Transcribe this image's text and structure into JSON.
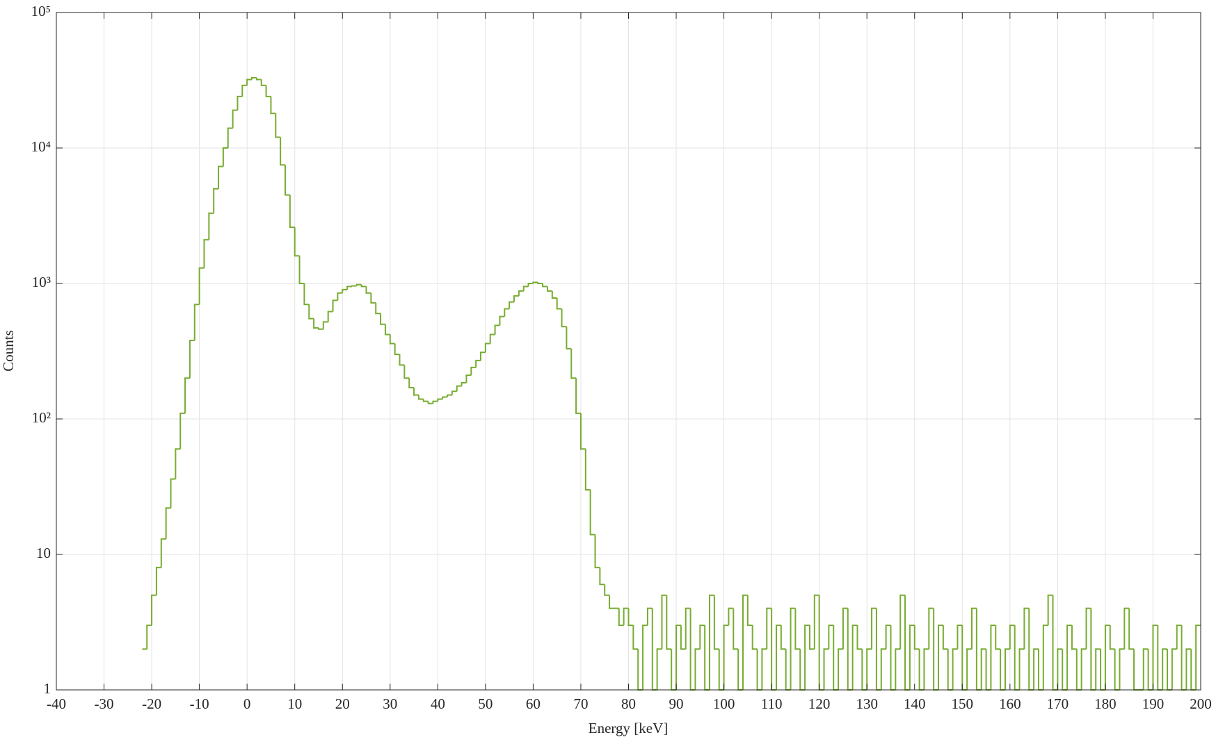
{
  "chart_data": {
    "type": "histogram",
    "xlabel": "Energy [keV]",
    "ylabel": "Counts",
    "color": "#77ac30",
    "log_y": true,
    "grid": true,
    "xlim": [
      -40,
      200
    ],
    "ylim": [
      1,
      100000
    ],
    "xticks": [
      -40,
      -30,
      -20,
      -10,
      0,
      10,
      20,
      30,
      40,
      50,
      60,
      70,
      80,
      90,
      100,
      110,
      120,
      130,
      140,
      150,
      160,
      170,
      180,
      190,
      200
    ],
    "yticks": [
      1,
      10,
      {
        "value": 100,
        "label": "10²"
      },
      {
        "value": 1000,
        "label": "10³"
      },
      {
        "value": 10000,
        "label": "10⁴"
      },
      {
        "value": 100000,
        "label": "10⁵"
      }
    ],
    "bins": [
      -22,
      -21,
      -20,
      -19,
      -18,
      -17,
      -16,
      -15,
      -14,
      -13,
      -12,
      -11,
      -10,
      -9,
      -8,
      -7,
      -6,
      -5,
      -4,
      -3,
      -2,
      -1,
      0,
      1,
      2,
      3,
      4,
      5,
      6,
      7,
      8,
      9,
      10,
      11,
      12,
      13,
      14,
      15,
      16,
      17,
      18,
      19,
      20,
      21,
      22,
      23,
      24,
      25,
      26,
      27,
      28,
      29,
      30,
      31,
      32,
      33,
      34,
      35,
      36,
      37,
      38,
      39,
      40,
      41,
      42,
      43,
      44,
      45,
      46,
      47,
      48,
      49,
      50,
      51,
      52,
      53,
      54,
      55,
      56,
      57,
      58,
      59,
      60,
      61,
      62,
      63,
      64,
      65,
      66,
      67,
      68,
      69,
      70,
      71,
      72,
      73,
      74,
      75,
      76,
      77,
      78,
      79,
      80,
      81,
      82,
      83,
      84,
      85,
      86,
      87,
      88,
      89,
      90,
      91,
      92,
      93,
      94,
      95,
      96,
      97,
      98,
      99,
      100,
      101,
      102,
      103,
      104,
      105,
      106,
      107,
      108,
      109,
      110,
      111,
      112,
      113,
      114,
      115,
      116,
      117,
      118,
      119,
      120,
      121,
      122,
      123,
      124,
      125,
      126,
      127,
      128,
      129,
      130,
      131,
      132,
      133,
      134,
      135,
      136,
      137,
      138,
      139,
      140,
      141,
      142,
      143,
      144,
      145,
      146,
      147,
      148,
      149,
      150,
      151,
      152,
      153,
      154,
      155,
      156,
      157,
      158,
      159,
      160,
      161,
      162,
      163,
      164,
      165,
      166,
      167,
      168,
      169,
      170,
      171,
      172,
      173,
      174,
      175,
      176,
      177,
      178,
      179,
      180,
      181,
      182,
      183,
      184,
      185,
      186,
      187,
      188,
      189,
      190,
      191,
      192,
      193,
      194,
      195,
      196,
      197,
      198,
      199,
      200
    ],
    "values": [
      2,
      3,
      5,
      8,
      13,
      22,
      36,
      60,
      110,
      200,
      380,
      700,
      1300,
      2100,
      3300,
      5000,
      7300,
      10000,
      14000,
      19000,
      24000,
      29000,
      32000,
      33000,
      32000,
      29000,
      24000,
      18000,
      12000,
      7500,
      4500,
      2600,
      1600,
      1000,
      700,
      550,
      470,
      460,
      520,
      620,
      750,
      850,
      900,
      950,
      960,
      980,
      950,
      850,
      720,
      600,
      500,
      420,
      360,
      300,
      250,
      200,
      170,
      150,
      140,
      135,
      130,
      135,
      140,
      145,
      150,
      160,
      175,
      185,
      210,
      240,
      270,
      310,
      360,
      420,
      490,
      570,
      650,
      730,
      810,
      880,
      950,
      1000,
      1020,
      1000,
      950,
      880,
      780,
      650,
      480,
      330,
      200,
      110,
      60,
      30,
      14,
      8,
      6,
      5,
      4,
      4,
      3,
      4,
      3,
      2,
      1,
      3,
      4,
      1,
      2,
      5,
      2,
      1,
      3,
      2,
      4,
      1,
      2,
      3,
      1,
      5,
      2,
      1,
      3,
      4,
      2,
      1,
      5,
      3,
      2,
      1,
      2,
      4,
      1,
      3,
      2,
      1,
      4,
      2,
      1,
      3,
      2,
      5,
      1,
      2,
      3,
      1,
      2,
      4,
      1,
      3,
      2,
      1,
      2,
      4,
      1,
      2,
      3,
      1,
      2,
      5,
      1,
      3,
      2,
      1,
      2,
      4,
      1,
      3,
      2,
      1,
      2,
      3,
      1,
      2,
      4,
      1,
      2,
      1,
      3,
      2,
      1,
      2,
      3,
      1,
      2,
      4,
      1,
      2,
      1,
      3,
      5,
      1,
      2,
      1,
      3,
      2,
      1,
      2,
      4,
      1,
      2,
      1,
      3,
      2,
      1,
      2,
      4,
      2,
      1,
      1,
      2,
      1,
      3,
      1,
      2,
      1,
      2,
      3,
      1,
      2,
      1,
      3
    ]
  }
}
